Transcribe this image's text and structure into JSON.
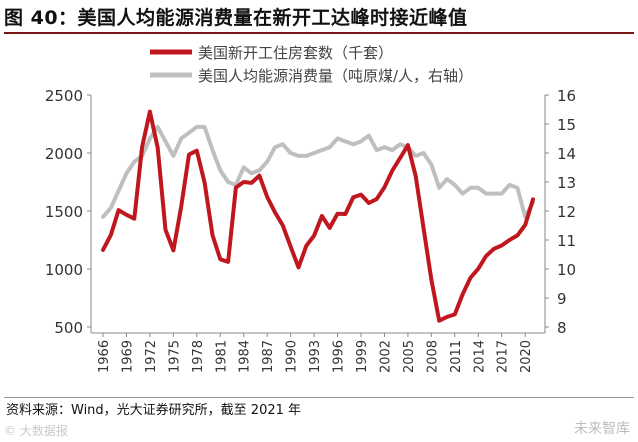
{
  "header": {
    "title": "图 40：美国人均能源消费量在新开工达峰时接近峰值"
  },
  "footer": {
    "source": "资料来源：Wind，光大证券研究所，截至 2021 年"
  },
  "watermarks": {
    "left": "© 大数据报",
    "right": "未来智库"
  },
  "chart_data": {
    "type": "line",
    "title": "",
    "xlabel": "",
    "ylabel": "",
    "y_left": {
      "ylim": [
        500,
        2500
      ],
      "ticks": [
        500,
        1000,
        1500,
        2000,
        2500
      ]
    },
    "y_right": {
      "ylim": [
        8,
        16
      ],
      "ticks": [
        8,
        9,
        10,
        11,
        12,
        13,
        14,
        15,
        16
      ]
    },
    "x_ticks": [
      "1966",
      "1969",
      "1972",
      "1975",
      "1978",
      "1981",
      "1984",
      "1987",
      "1990",
      "1993",
      "1996",
      "1999",
      "2002",
      "2005",
      "2008",
      "2011",
      "2014",
      "2017",
      "2020"
    ],
    "legend_position": "top",
    "grid": false,
    "x": [
      1966,
      1967,
      1968,
      1969,
      1970,
      1971,
      1972,
      1973,
      1974,
      1975,
      1976,
      1977,
      1978,
      1979,
      1980,
      1981,
      1982,
      1983,
      1984,
      1985,
      1986,
      1987,
      1988,
      1989,
      1990,
      1991,
      1992,
      1993,
      1994,
      1995,
      1996,
      1997,
      1998,
      1999,
      2000,
      2001,
      2002,
      2003,
      2004,
      2005,
      2006,
      2007,
      2008,
      2009,
      2010,
      2011,
      2012,
      2013,
      2014,
      2015,
      2016,
      2017,
      2018,
      2019,
      2020,
      2021
    ],
    "series": [
      {
        "name": "美国新开工住房套数（千套）",
        "axis": "left",
        "color": "#c0171f",
        "values": [
          1165,
          1292,
          1508,
          1467,
          1434,
          2052,
          2357,
          2045,
          1338,
          1160,
          1538,
          1987,
          2020,
          1745,
          1292,
          1084,
          1062,
          1703,
          1750,
          1742,
          1805,
          1621,
          1488,
          1376,
          1193,
          1014,
          1200,
          1288,
          1457,
          1354,
          1477,
          1474,
          1617,
          1641,
          1569,
          1603,
          1705,
          1848,
          1956,
          2068,
          1801,
          1355,
          906,
          554,
          587,
          609,
          781,
          925,
          1003,
          1112,
          1174,
          1203,
          1250,
          1290,
          1380,
          1601
        ]
      },
      {
        "name": "美国人均能源消费量（吨原煤/人，右轴）",
        "axis": "right",
        "color": "#bfbfbf",
        "values": [
          11.8,
          12.1,
          12.7,
          13.3,
          13.7,
          13.9,
          14.5,
          14.9,
          14.4,
          13.9,
          14.5,
          14.7,
          14.9,
          14.9,
          14.1,
          13.4,
          13.0,
          12.9,
          13.5,
          13.3,
          13.4,
          13.7,
          14.2,
          14.3,
          14.0,
          13.9,
          13.9,
          14.0,
          14.1,
          14.2,
          14.5,
          14.4,
          14.3,
          14.4,
          14.6,
          14.1,
          14.2,
          14.1,
          14.3,
          14.2,
          13.9,
          14.0,
          13.6,
          12.8,
          13.1,
          12.9,
          12.6,
          12.8,
          12.8,
          12.6,
          12.6,
          12.6,
          12.9,
          12.8,
          11.8,
          12.3
        ]
      }
    ]
  }
}
